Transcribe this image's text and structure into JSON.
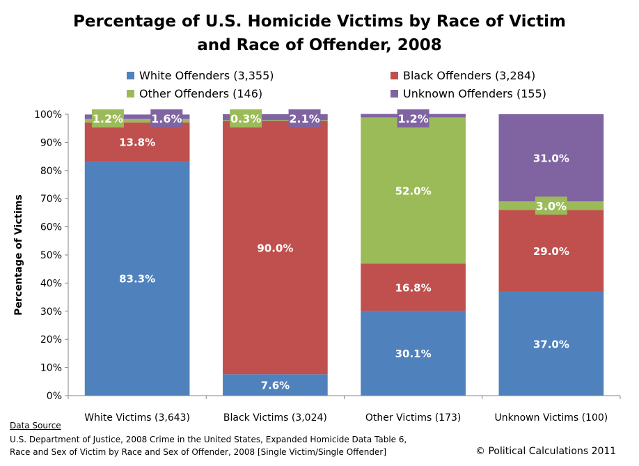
{
  "chart_data": {
    "type": "bar",
    "stacked": true,
    "title_line1": "Percentage of U.S. Homicide Victims by Race of Victim",
    "title_line2": "and Race of Offender, 2008",
    "ylabel": "Percentage of Victims",
    "xlabel": "",
    "ylim": [
      0,
      100
    ],
    "y_ticks": [
      "0%",
      "10%",
      "20%",
      "30%",
      "40%",
      "50%",
      "60%",
      "70%",
      "80%",
      "90%",
      "100%"
    ],
    "categories": [
      "White Victims (3,643)",
      "Black Victims (3,024)",
      "Other Victims (173)",
      "Unknown Victims (100)"
    ],
    "legend_position": "top",
    "grid": false,
    "series": [
      {
        "name": "White Offenders",
        "legend": "White Offenders  (3,355)",
        "color": "#4f81bd",
        "values": [
          83.3,
          7.6,
          30.1,
          37.0
        ],
        "labels": [
          "83.3%",
          "7.6%",
          "30.1%",
          "37.0%"
        ]
      },
      {
        "name": "Black Offenders",
        "legend": "Black Offenders  (3,284)",
        "color": "#c0504d",
        "values": [
          13.8,
          90.0,
          16.8,
          29.0
        ],
        "labels": [
          "13.8%",
          "90.0%",
          "16.8%",
          "29.0%"
        ]
      },
      {
        "name": "Other Offenders",
        "legend": "Other Offenders  (146)",
        "color": "#9bbb59",
        "values": [
          1.2,
          0.3,
          52.0,
          3.0
        ],
        "labels": [
          "1.2%",
          "0.3%",
          "52.0%",
          "3.0%"
        ]
      },
      {
        "name": "Unknown Offenders",
        "legend": "Unknown Offenders  (155)",
        "color": "#8064a2",
        "values": [
          1.6,
          2.1,
          1.2,
          31.0
        ],
        "labels": [
          "1.6%",
          "2.1%",
          "1.2%",
          "31.0%"
        ]
      }
    ]
  },
  "footer": {
    "source_heading": "Data Source",
    "source_line1": "U.S. Department of Justice, 2008 Crime in the United States, Expanded Homicide Data Table 6,",
    "source_line2": "Race and Sex of Victim by Race and Sex of Offender, 2008 [Single Victim/Single Offender]",
    "credit": "© Political Calculations 2011"
  }
}
